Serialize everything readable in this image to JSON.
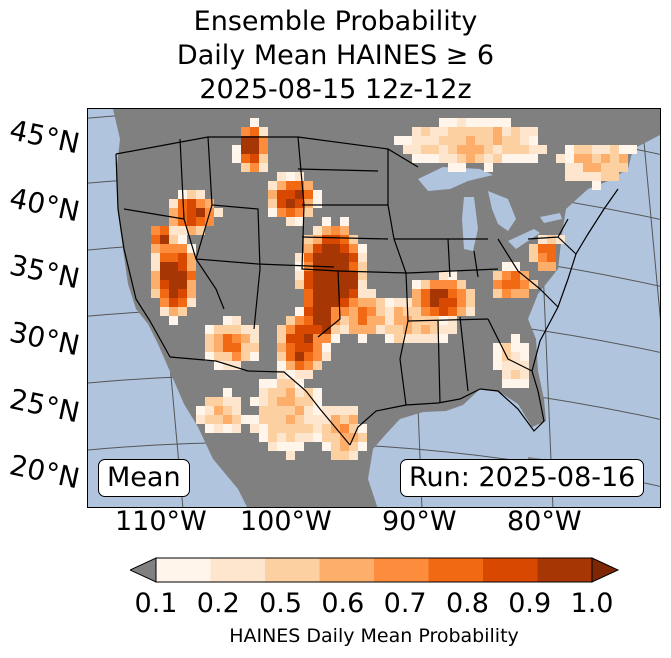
{
  "title": {
    "line1": "Ensemble Probability",
    "line2": "Daily Mean HAINES ≥ 6",
    "line3": "2025-08-15 12z-12z"
  },
  "map": {
    "region": "Contiguous United States",
    "colors": {
      "ocean": "#b0c4de",
      "land_below_threshold": "#808080",
      "borders": "#000000",
      "graticule": "#555555"
    },
    "lat_labels": [
      "45°N",
      "40°N",
      "35°N",
      "30°N",
      "25°N",
      "20°N"
    ],
    "lon_labels": [
      "110°W",
      "100°W",
      "90°W",
      "80°W"
    ]
  },
  "annotations": {
    "mean_label": "Mean",
    "run_label": "Run: 2025-08-16"
  },
  "colorbar": {
    "label": "HAINES Daily Mean Probability",
    "ticks": [
      "0.1",
      "0.2",
      "0.5",
      "0.6",
      "0.7",
      "0.8",
      "0.9",
      "1.0"
    ],
    "colors": [
      "#fff5eb",
      "#fee6ce",
      "#fdd0a2",
      "#fdae6b",
      "#fd8d3c",
      "#f16913",
      "#d94801",
      "#a63603"
    ],
    "under_color": "#808080",
    "over_color": "#7f2704"
  }
}
